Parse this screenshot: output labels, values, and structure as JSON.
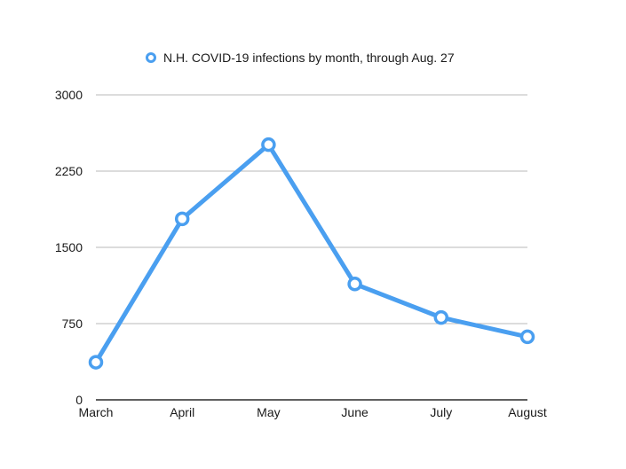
{
  "chart_data": {
    "type": "line",
    "title": "",
    "xlabel": "",
    "ylabel": "",
    "categories": [
      "March",
      "April",
      "May",
      "June",
      "July",
      "August"
    ],
    "series": [
      {
        "name": "N.H. COVID-19 infections by month, through Aug. 27",
        "values": [
          370,
          1780,
          2510,
          1140,
          810,
          620
        ],
        "color": "#4a9ff0"
      }
    ],
    "ylim": [
      0,
      3000
    ],
    "yticks": [
      0,
      750,
      1500,
      2250,
      3000
    ],
    "grid": true,
    "legend_position": "top-center",
    "marker": "hollow-circle"
  }
}
